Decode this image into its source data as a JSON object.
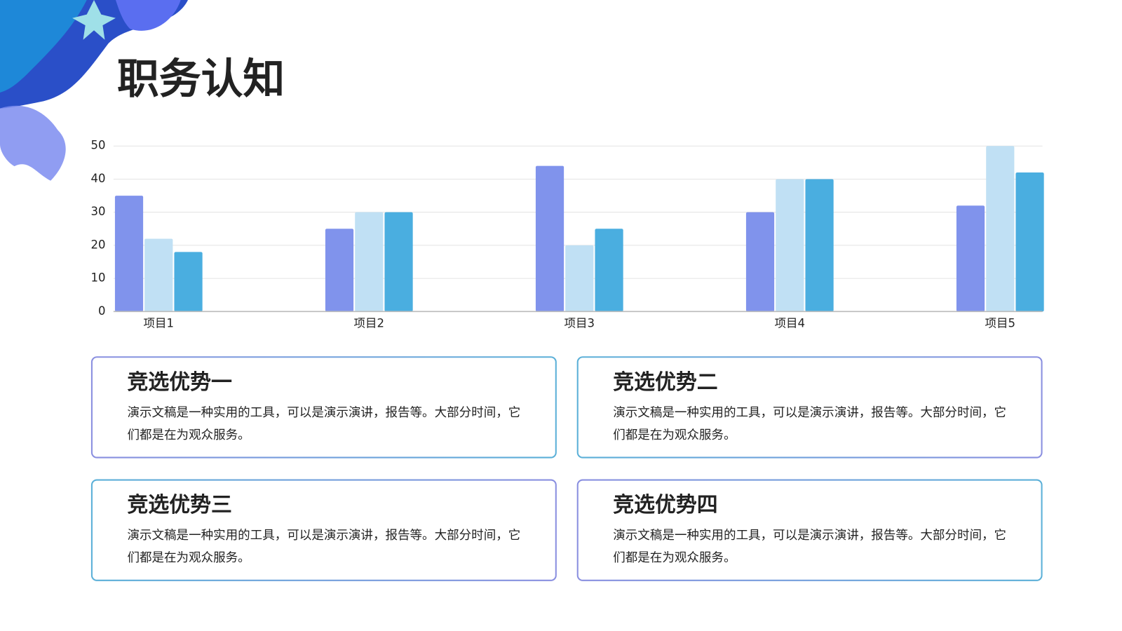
{
  "heading": "职务认知",
  "chart_data": {
    "type": "bar",
    "categories": [
      "项目1",
      "项目2",
      "项目3",
      "项目4",
      "项目5"
    ],
    "series": [
      {
        "color": "#8093ec",
        "values": [
          35,
          25,
          44,
          30,
          32
        ]
      },
      {
        "color": "#c0e0f4",
        "values": [
          22,
          30,
          20,
          40,
          50
        ]
      },
      {
        "color": "#4aaee0",
        "values": [
          18,
          30,
          25,
          40,
          42
        ]
      }
    ],
    "ylim": [
      0,
      50
    ],
    "yticks": [
      0,
      10,
      20,
      30,
      40,
      50
    ],
    "grid": true
  },
  "cards": [
    {
      "title": "竞选优势一",
      "text": "演示文稿是一种实用的工具，可以是演示演讲，报告等。大部分时间，它们都是在为观众服务。"
    },
    {
      "title": "竞选优势二",
      "text": "演示文稿是一种实用的工具，可以是演示演讲，报告等。大部分时间，它们都是在为观众服务。"
    },
    {
      "title": "竞选优势三",
      "text": "演示文稿是一种实用的工具，可以是演示演讲，报告等。大部分时间，它们都是在为观众服务。"
    },
    {
      "title": "竞选优势四",
      "text": "演示文稿是一种实用的工具，可以是演示演讲，报告等。大部分时间，它们都是在为观众服务。"
    }
  ]
}
